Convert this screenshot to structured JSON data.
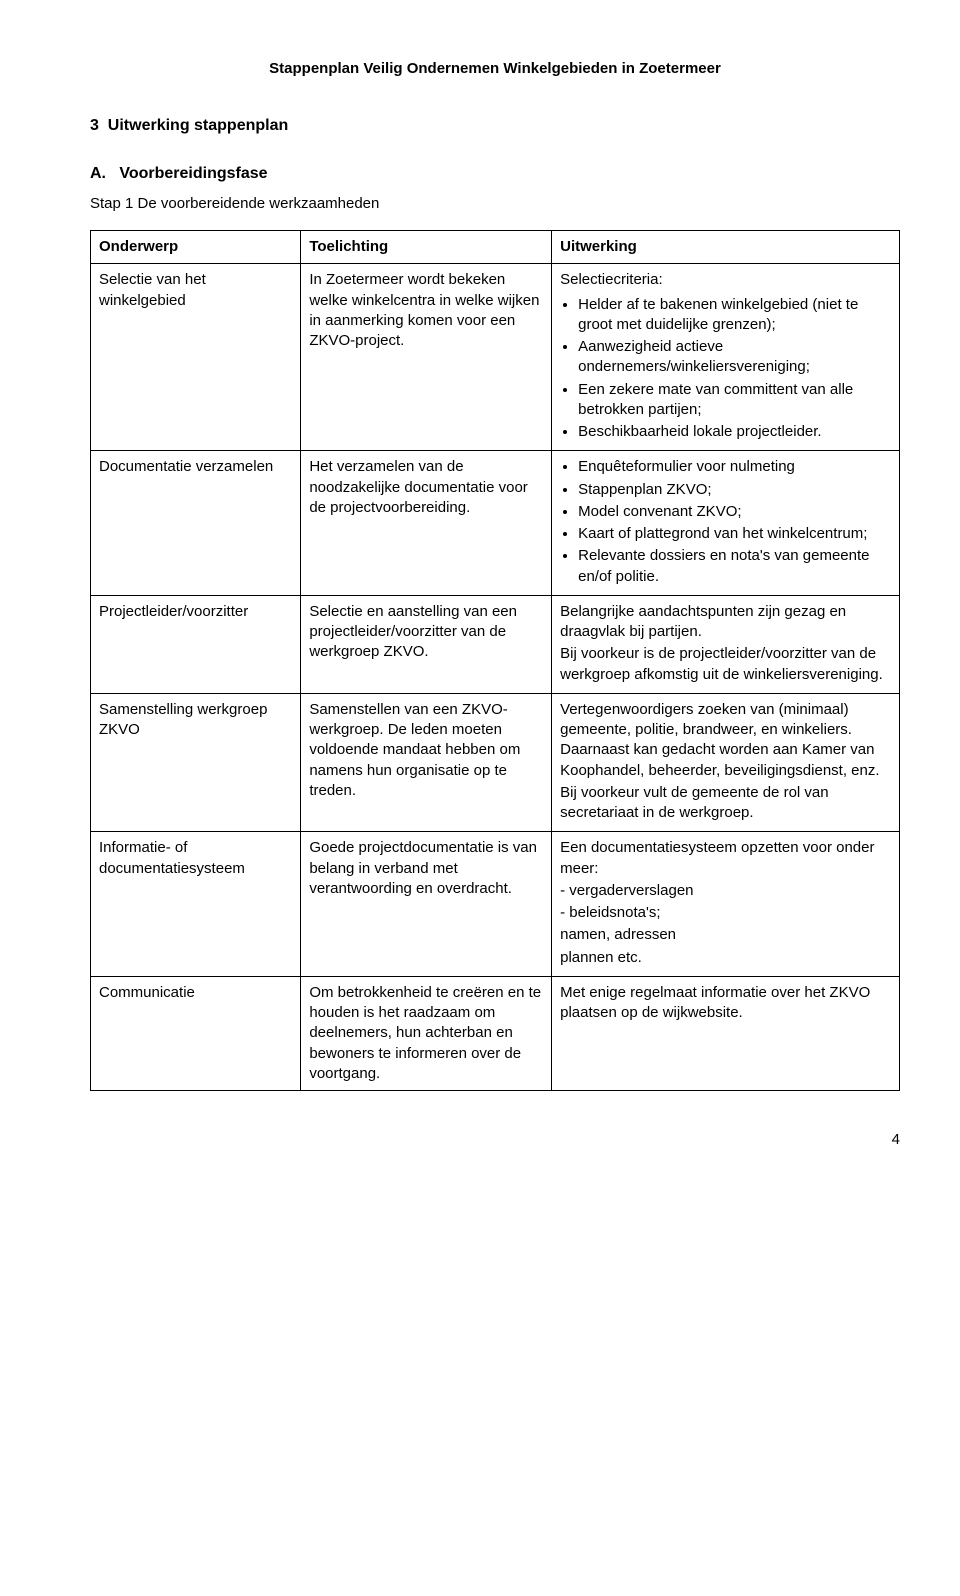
{
  "meta": {
    "header": "Stappenplan Veilig Ondernemen Winkelgebieden in Zoetermeer",
    "page_number": "4"
  },
  "section": {
    "number": "3",
    "title": "Uitwerking stappenplan"
  },
  "phase": {
    "letter": "A.",
    "title": "Voorbereidingsfase"
  },
  "step": {
    "label": "Stap 1",
    "title": "De voorbereidende werkzaamheden"
  },
  "table": {
    "headers": [
      "Onderwerp",
      "Toelichting",
      "Uitwerking"
    ],
    "rows": [
      {
        "onderwerp": "Selectie van het winkelgebied",
        "toelichting": "In Zoetermeer wordt bekeken welke winkelcentra in welke wijken in aanmerking komen voor een ZKVO-project.",
        "uitwerking": {
          "intro": "Selectiecriteria:",
          "bullets": [
            "Helder af te bakenen winkelgebied (niet te groot met duidelijke grenzen);",
            "Aanwezigheid actieve ondernemers/winkeliersvereniging;",
            "Een zekere mate van committent van alle betrokken partijen;",
            "Beschikbaarheid lokale projectleider."
          ]
        }
      },
      {
        "onderwerp": "Documentatie verzamelen",
        "toelichting": "Het verzamelen van de noodzakelijke documentatie voor de projectvoorbereiding.",
        "uitwerking": {
          "bullets": [
            "Enquêteformulier voor nulmeting",
            "Stappenplan ZKVO;",
            "Model convenant ZKVO;",
            "Kaart of plattegrond van het winkelcentrum;",
            "Relevante dossiers en nota's van gemeente en/of politie."
          ]
        }
      },
      {
        "onderwerp": "Projectleider/voorzitter",
        "toelichting": "Selectie en aanstelling van een projectleider/voorzitter van de werkgroep ZKVO.",
        "uitwerking": {
          "paragraphs": [
            "Belangrijke aandachtspunten zijn gezag en draagvlak bij partijen.",
            "Bij voorkeur is de projectleider/voorzitter van de werkgroep afkomstig uit de winkeliersvereniging."
          ]
        }
      },
      {
        "onderwerp": "Samenstelling werkgroep ZKVO",
        "toelichting": "Samenstellen van een ZKVO-werkgroep. De leden moeten voldoende mandaat hebben om namens hun organisatie op te treden.",
        "uitwerking": {
          "paragraphs": [
            "Vertegenwoordigers zoeken van (minimaal) gemeente, politie, brandweer, en winkeliers. Daarnaast kan gedacht worden aan Kamer van Koophandel, beheerder, beveiligingsdienst, enz.",
            "Bij voorkeur vult de gemeente de rol van secretariaat in de werkgroep."
          ]
        }
      },
      {
        "onderwerp": "Informatie- of documentatiesysteem",
        "toelichting": "Goede projectdocumentatie is van belang in verband met verantwoording en overdracht.",
        "uitwerking": {
          "lines": [
            "Een documentatiesysteem opzetten voor onder meer:",
            "- vergaderverslagen",
            "- beleidsnota's;",
            "namen, adressen",
            "plannen etc."
          ]
        }
      },
      {
        "onderwerp": "Communicatie",
        "toelichting": "Om betrokkenheid te creëren en te houden is het raadzaam om deelnemers, hun achterban en bewoners te informeren over de voortgang.",
        "uitwerking": {
          "paragraphs": [
            "Met enige regelmaat informatie over het ZKVO plaatsen op de wijkwebsite."
          ]
        }
      }
    ]
  }
}
